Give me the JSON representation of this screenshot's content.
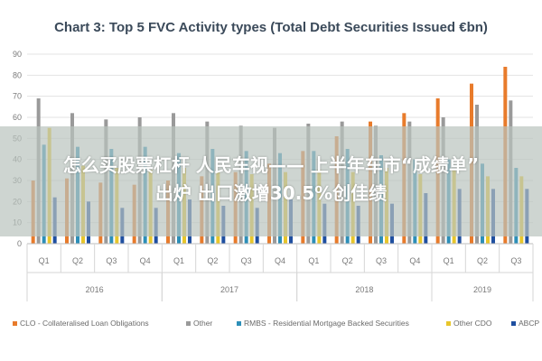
{
  "chart_data": {
    "type": "bar",
    "title": "Chart 3: Top 5 FVC Activity types (Total Debt Securities Issued €bn)",
    "ylim": [
      0,
      90
    ],
    "yticks": [
      0,
      10,
      20,
      30,
      40,
      50,
      60,
      70,
      80,
      90
    ],
    "categories": [
      "Q1",
      "Q2",
      "Q3",
      "Q4",
      "Q1",
      "Q2",
      "Q3",
      "Q4",
      "Q1",
      "Q2",
      "Q3",
      "Q4",
      "Q1",
      "Q2",
      "Q3"
    ],
    "years": [
      {
        "label": "2016",
        "start": 0,
        "end": 3
      },
      {
        "label": "2017",
        "start": 4,
        "end": 7
      },
      {
        "label": "2018",
        "start": 8,
        "end": 11
      },
      {
        "label": "2019",
        "start": 12,
        "end": 14
      }
    ],
    "series": [
      {
        "name": "CLO - Collateralised Loan Obligations",
        "color": "#e87b2b",
        "values": [
          30,
          31,
          29,
          28,
          30,
          32,
          34,
          38,
          44,
          51,
          58,
          62,
          69,
          76,
          84
        ]
      },
      {
        "name": "Other",
        "color": "#9a9a9a",
        "values": [
          69,
          62,
          59,
          60,
          62,
          58,
          56,
          55,
          57,
          58,
          56,
          58,
          60,
          66,
          68
        ]
      },
      {
        "name": "RMBS - Residential Mortgage Backed Securities",
        "color": "#2d8fb8",
        "values": [
          47,
          46,
          45,
          46,
          43,
          45,
          44,
          43,
          44,
          45,
          42,
          40,
          40,
          38,
          36
        ]
      },
      {
        "name": "Other CDO",
        "color": "#e8c62b",
        "values": [
          55,
          37,
          36,
          35,
          36,
          34,
          33,
          34,
          35,
          34,
          36,
          33,
          35,
          32,
          32
        ]
      },
      {
        "name": "ABCP",
        "color": "#1f4fa0",
        "values": [
          22,
          20,
          17,
          17,
          21,
          18,
          17,
          21,
          19,
          18,
          19,
          24,
          26,
          26,
          26
        ]
      }
    ],
    "legend_position": "bottom",
    "grid": true
  },
  "overlay": {
    "line1": "怎么买股票杠杆 人民车视—— 上半年车市“成绩单”",
    "line2": "出炉 出口激增30.5%创佳绩"
  }
}
